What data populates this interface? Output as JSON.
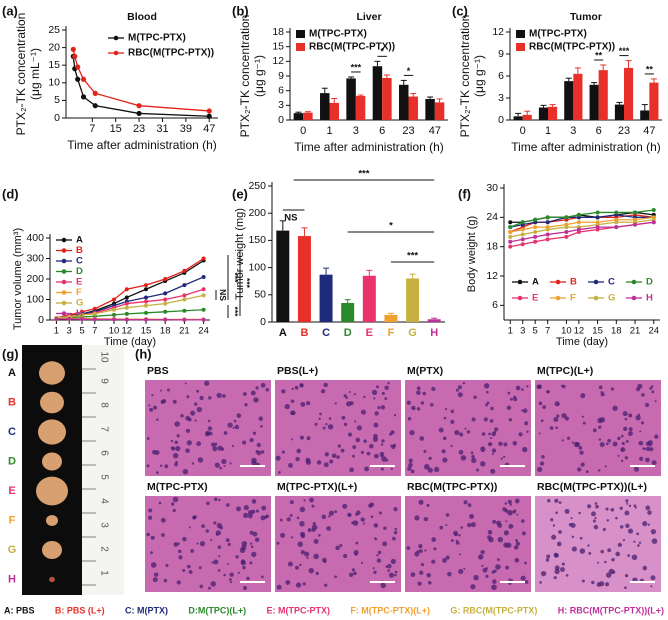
{
  "chart_data": [
    {
      "type": "line",
      "label": "(a)",
      "title": "Blood",
      "xlabel": "Time after administration (h)",
      "ylabel": [
        "PTX₂-TK concentration",
        "(μg mL⁻¹)"
      ],
      "x": [
        0.5,
        1,
        2,
        4,
        8,
        23,
        47
      ],
      "xlim": [
        -2,
        50
      ],
      "xticks": [
        7,
        15,
        23,
        31,
        39,
        47
      ],
      "ylim": [
        0,
        25
      ],
      "yticks": [
        0,
        5,
        10,
        15,
        20,
        25
      ],
      "legend": "upper right",
      "series": [
        {
          "name": "M(TPC-PTX)",
          "color": "#111111",
          "values": [
            17.5,
            14,
            11,
            6,
            3.5,
            1.3,
            0.5
          ]
        },
        {
          "name": "RBC(M(TPC-PTX))",
          "color": "#e2231a",
          "values": [
            19.5,
            17.5,
            14.5,
            11,
            7,
            3.5,
            2
          ]
        }
      ]
    },
    {
      "type": "bar",
      "label": "(b)",
      "title": "Liver",
      "xlabel": "Time after administration (h)",
      "ylabel": [
        "PTX₂-TK concentration",
        "(μg g⁻¹)"
      ],
      "categories": [
        "0",
        "1",
        "3",
        "6",
        "23",
        "47"
      ],
      "ylim": [
        0,
        18
      ],
      "yticks": [
        0,
        3,
        6,
        9,
        12,
        15,
        18
      ],
      "legend": "upper left",
      "series": [
        {
          "name": "M(TPC-PTX)",
          "color": "#111111",
          "values": [
            1.4,
            5.5,
            8.5,
            11,
            7.2,
            4.3
          ],
          "errors": [
            0.2,
            1,
            0.3,
            1,
            0.9,
            0.4
          ]
        },
        {
          "name": "RBC(M(TPC-PTX))",
          "color": "#e8302a",
          "values": [
            1.5,
            3.5,
            4.9,
            8.6,
            4.8,
            3.6
          ],
          "errors": [
            0.2,
            0.9,
            0.2,
            0.6,
            0.6,
            0.7
          ]
        }
      ],
      "annotations": [
        "***",
        "*",
        "*"
      ]
    },
    {
      "type": "bar",
      "label": "(c)",
      "title": "Tumor",
      "xlabel": "Time after administration (h)",
      "ylabel": [
        "PTX₂-TK concentration",
        "(μg g⁻¹)"
      ],
      "categories": [
        "0",
        "1",
        "3",
        "6",
        "23",
        "47"
      ],
      "ylim": [
        0,
        12
      ],
      "yticks": [
        0,
        3,
        6,
        9,
        12
      ],
      "legend": "upper left",
      "series": [
        {
          "name": "M(TPC-PTX)",
          "color": "#111111",
          "values": [
            0.5,
            1.7,
            5.3,
            4.8,
            2.1,
            1.3
          ],
          "errors": [
            0.4,
            0.3,
            0.4,
            0.3,
            0.3,
            0.8
          ]
        },
        {
          "name": "RBC(M(TPC-PTX))",
          "color": "#e8302a",
          "values": [
            0.7,
            1.8,
            6.3,
            6.8,
            7.1,
            5.1
          ],
          "errors": [
            0.5,
            0.3,
            0.8,
            0.7,
            1,
            0.5
          ]
        }
      ],
      "annotations": [
        "**",
        "***",
        "**"
      ]
    },
    {
      "type": "line",
      "label": "(d)",
      "xlabel": "Time (day)",
      "ylabel": "Tumor volume (mm³)",
      "x": [
        1,
        3,
        5,
        7,
        10,
        12,
        15,
        18,
        21,
        24
      ],
      "xlim": [
        0,
        25
      ],
      "xticks": [
        1,
        3,
        5,
        7,
        10,
        12,
        15,
        18,
        21,
        24
      ],
      "ylim": [
        0,
        400
      ],
      "yticks": [
        0,
        100,
        200,
        300,
        400
      ],
      "legend": "upper left",
      "series": [
        {
          "name": "A",
          "color": "#111111",
          "values": [
            10,
            20,
            30,
            45,
            80,
            110,
            150,
            190,
            230,
            290
          ]
        },
        {
          "name": "B",
          "color": "#e2231a",
          "values": [
            10,
            25,
            40,
            55,
            100,
            150,
            170,
            200,
            240,
            300
          ]
        },
        {
          "name": "C",
          "color": "#1f2a7a",
          "values": [
            10,
            20,
            30,
            40,
            70,
            90,
            110,
            130,
            170,
            210
          ]
        },
        {
          "name": "D",
          "color": "#2a8a2a",
          "values": [
            10,
            12,
            15,
            18,
            25,
            30,
            35,
            40,
            45,
            50
          ]
        },
        {
          "name": "E",
          "color": "#e8336b",
          "values": [
            10,
            20,
            25,
            35,
            60,
            80,
            90,
            100,
            120,
            150
          ]
        },
        {
          "name": "F",
          "color": "#f0a030",
          "values": [
            10,
            8,
            7,
            6,
            5,
            4,
            4,
            3,
            3,
            3
          ]
        },
        {
          "name": "G",
          "color": "#c8b040",
          "values": [
            10,
            15,
            25,
            30,
            50,
            60,
            70,
            80,
            100,
            120
          ]
        },
        {
          "name": "H",
          "color": "#c0309a",
          "values": [
            5,
            5,
            4,
            3,
            3,
            2,
            2,
            2,
            1,
            1
          ]
        }
      ],
      "annotations": [
        "NS",
        "***",
        "***",
        "***"
      ]
    },
    {
      "type": "bar",
      "label": "(e)",
      "ylabel": "Tumor weight (mg)",
      "categories": [
        "A",
        "B",
        "C",
        "D",
        "E",
        "F",
        "G",
        "H"
      ],
      "values": [
        168,
        158,
        87,
        35,
        85,
        13,
        80,
        5
      ],
      "errors": [
        18,
        15,
        12,
        6,
        10,
        3,
        8,
        2
      ],
      "colors": [
        "#111111",
        "#e8302a",
        "#1f2a7a",
        "#2a8a2a",
        "#e8336b",
        "#f0a030",
        "#c8b040",
        "#c0309a"
      ],
      "ylim": [
        0,
        250
      ],
      "yticks": [
        0,
        50,
        100,
        150,
        200,
        250
      ],
      "annotations": [
        "NS",
        "***",
        "*",
        "***"
      ]
    },
    {
      "type": "line",
      "label": "(f)",
      "xlabel": "Time (day)",
      "ylabel": "Body weight (g)",
      "x": [
        1,
        3,
        5,
        7,
        10,
        12,
        15,
        18,
        21,
        24
      ],
      "xlim": [
        0,
        25
      ],
      "xticks": [
        1,
        3,
        5,
        7,
        10,
        12,
        15,
        18,
        21,
        24
      ],
      "ylim": [
        3,
        30
      ],
      "yticks": [
        6,
        12,
        18,
        24,
        30
      ],
      "legend": "lower center",
      "series": [
        {
          "name": "A",
          "color": "#111111",
          "values": [
            23,
            23,
            23.5,
            24,
            24,
            24.5,
            24,
            24.5,
            25,
            24.5
          ]
        },
        {
          "name": "B",
          "color": "#e2231a",
          "values": [
            21,
            22,
            23,
            23,
            23.5,
            24,
            24,
            24,
            24.5,
            24
          ]
        },
        {
          "name": "C",
          "color": "#1f2a7a",
          "values": [
            22,
            22.5,
            23,
            23,
            24,
            24,
            24,
            24.5,
            24,
            24
          ]
        },
        {
          "name": "D",
          "color": "#2a8a2a",
          "values": [
            22,
            23,
            23.5,
            24,
            24,
            24.5,
            25,
            25,
            25,
            25.5
          ]
        },
        {
          "name": "E",
          "color": "#e8336b",
          "values": [
            18,
            18.5,
            19,
            19.5,
            20,
            21,
            21.5,
            22,
            22.5,
            23
          ]
        },
        {
          "name": "F",
          "color": "#f0a030",
          "values": [
            21,
            21.5,
            22,
            22,
            22.5,
            23,
            23,
            23.5,
            23.5,
            24
          ]
        },
        {
          "name": "G",
          "color": "#c8b040",
          "values": [
            20,
            20.5,
            21,
            21.5,
            22,
            22,
            22.5,
            23,
            23,
            23.5
          ]
        },
        {
          "name": "H",
          "color": "#c0309a",
          "values": [
            19,
            19.5,
            20,
            20.5,
            21,
            21.5,
            22,
            22,
            22.5,
            23
          ]
        }
      ]
    }
  ],
  "photo": {
    "label": "(g)",
    "groups": [
      "A",
      "B",
      "C",
      "D",
      "E",
      "F",
      "G",
      "H"
    ],
    "ruler": [
      "1",
      "2",
      "3",
      "4",
      "5",
      "6",
      "7",
      "8",
      "9",
      "10"
    ]
  },
  "histology": {
    "label": "(h)",
    "images": [
      "PBS",
      "PBS(L+)",
      "M(PTX)",
      "M(TPC)(L+)",
      "M(TPC-PTX)",
      "M(TPC-PTX)(L+)",
      "RBC(M(TPC-PTX))",
      "RBC(M(TPC-PTX))(L+)"
    ]
  },
  "key": [
    "A: PBS",
    "B: PBS (L+)",
    "C: M(PTX)",
    "D:M(TPC)(L+)",
    "E: M(TPC-PTX)",
    "F: M(TPC-PTX)(L+)",
    "G: RBC(M(TPC-PTX)",
    "H: RBC(M(TPC-PTX))(L+)"
  ]
}
